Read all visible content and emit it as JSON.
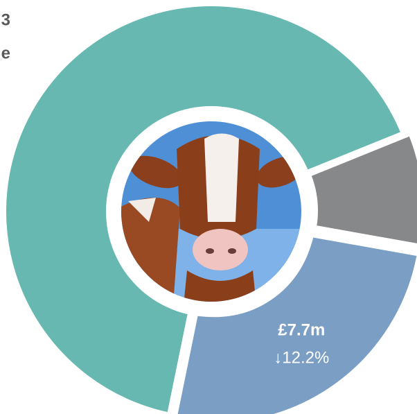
{
  "chart_data": {
    "type": "donut",
    "annotations": [
      "3",
      "e"
    ],
    "values": [
      2.7,
      7.7,
      19.9
    ],
    "value_labels": [
      null,
      "£7.7m",
      null
    ],
    "change_labels": [
      null,
      "↓12.2%",
      null
    ],
    "colors": [
      "#87888a",
      "#7b9ec4",
      "#66b8b0"
    ],
    "exploded": [
      true,
      true,
      false
    ],
    "start_angle": 68
  }
}
